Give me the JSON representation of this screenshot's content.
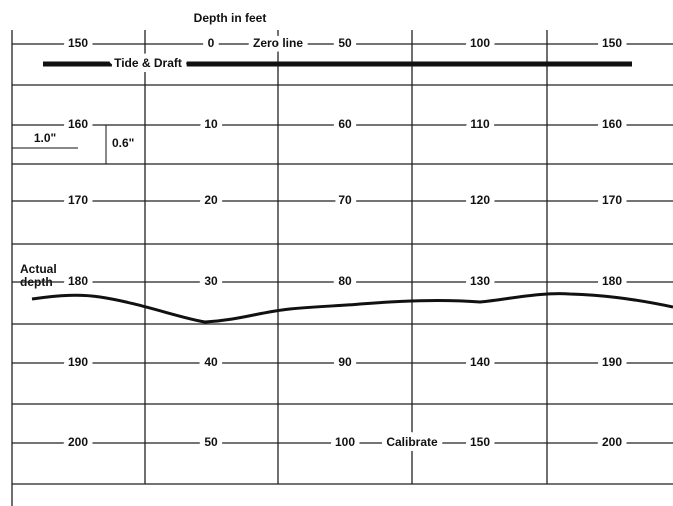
{
  "header": {
    "title": "Depth in feet"
  },
  "tide": "Tide & Draft",
  "actual": [
    "Actual",
    "depth"
  ],
  "scale": {
    "horizontal": "1.0\"",
    "vertical": "0.6\""
  },
  "rows": [
    [
      "150",
      "0",
      "Zero line",
      "50",
      "100",
      "150"
    ],
    [
      "160",
      "10",
      "60",
      "110",
      "160"
    ],
    [
      "170",
      "20",
      "70",
      "120",
      "170"
    ],
    [
      "180",
      "30",
      "80",
      "130",
      "180"
    ],
    [
      "190",
      "40",
      "90",
      "140",
      "190"
    ],
    [
      "200",
      "50",
      "100",
      "Calibrate",
      "150",
      "200"
    ]
  ]
}
